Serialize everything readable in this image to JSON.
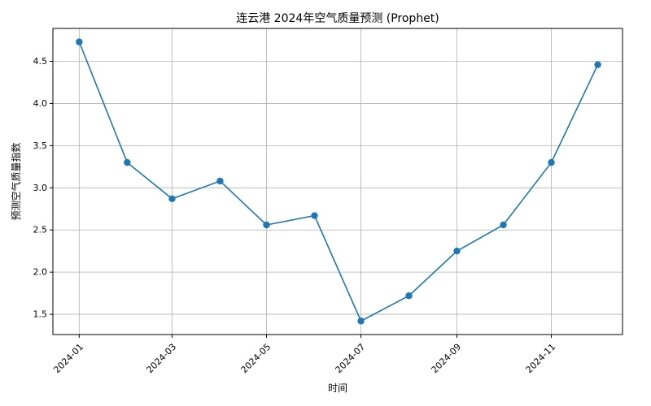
{
  "chart_data": {
    "type": "line",
    "title": "连云港 2024年空气质量预测 (Prophet)",
    "xlabel": "时间",
    "ylabel": "预测空气质量指数",
    "x": [
      "2024-01-01",
      "2024-02-01",
      "2024-03-01",
      "2024-04-01",
      "2024-05-01",
      "2024-06-01",
      "2024-07-01",
      "2024-08-01",
      "2024-09-01",
      "2024-10-01",
      "2024-11-01",
      "2024-12-01"
    ],
    "series": [
      {
        "values": [
          4.73,
          3.3,
          2.87,
          3.08,
          2.56,
          2.67,
          1.42,
          1.72,
          2.25,
          2.56,
          3.3,
          4.46
        ],
        "color": "#1f77b4"
      }
    ],
    "x_tick_labels": [
      "2024-01",
      "2024-03",
      "2024-05",
      "2024-07",
      "2024-09",
      "2024-11"
    ],
    "x_tick_dates": [
      "2024-01-01",
      "2024-03-01",
      "2024-05-01",
      "2024-07-01",
      "2024-09-01",
      "2024-11-01"
    ],
    "y_ticks": [
      1.5,
      2.0,
      2.5,
      3.0,
      3.5,
      4.0,
      4.5
    ],
    "y_tick_labels": [
      "1.5",
      "2.0",
      "2.5",
      "3.0",
      "3.5",
      "4.0",
      "4.5"
    ],
    "ylim": [
      1.26,
      4.89
    ],
    "xlim": [
      "2023-12-15",
      "2024-12-17"
    ],
    "grid": true
  }
}
